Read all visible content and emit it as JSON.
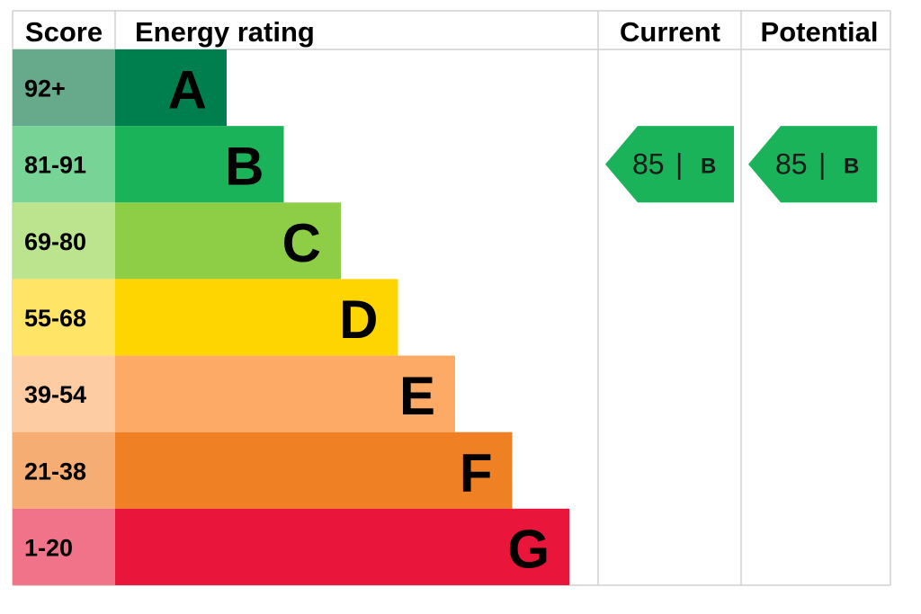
{
  "chart_data": {
    "type": "bar",
    "headers": {
      "score": "Score",
      "energy_rating": "Energy rating",
      "current": "Current",
      "potential": "Potential"
    },
    "bands": [
      {
        "score_range": "92+",
        "letter": "A",
        "color": "#007f4e",
        "score_bg": "#66a98b"
      },
      {
        "score_range": "81-91",
        "letter": "B",
        "color": "#1ab35a",
        "score_bg": "#78d396"
      },
      {
        "score_range": "69-80",
        "letter": "C",
        "color": "#8dce46",
        "score_bg": "#bce48f"
      },
      {
        "score_range": "55-68",
        "letter": "D",
        "color": "#ffd500",
        "score_bg": "#ffe466"
      },
      {
        "score_range": "39-54",
        "letter": "E",
        "color": "#fcaa65",
        "score_bg": "#fdcca3"
      },
      {
        "score_range": "21-38",
        "letter": "F",
        "color": "#ef8023",
        "score_bg": "#f5ad73"
      },
      {
        "score_range": "1-20",
        "letter": "G",
        "color": "#e9153b",
        "score_bg": "#f07389"
      }
    ],
    "current": {
      "score": "85",
      "separator": "|",
      "letter": "B",
      "color": "#1ab35a"
    },
    "potential": {
      "score": "85",
      "separator": "|",
      "letter": "B",
      "color": "#1ab35a"
    },
    "grid_color": "#d0d0d0"
  }
}
